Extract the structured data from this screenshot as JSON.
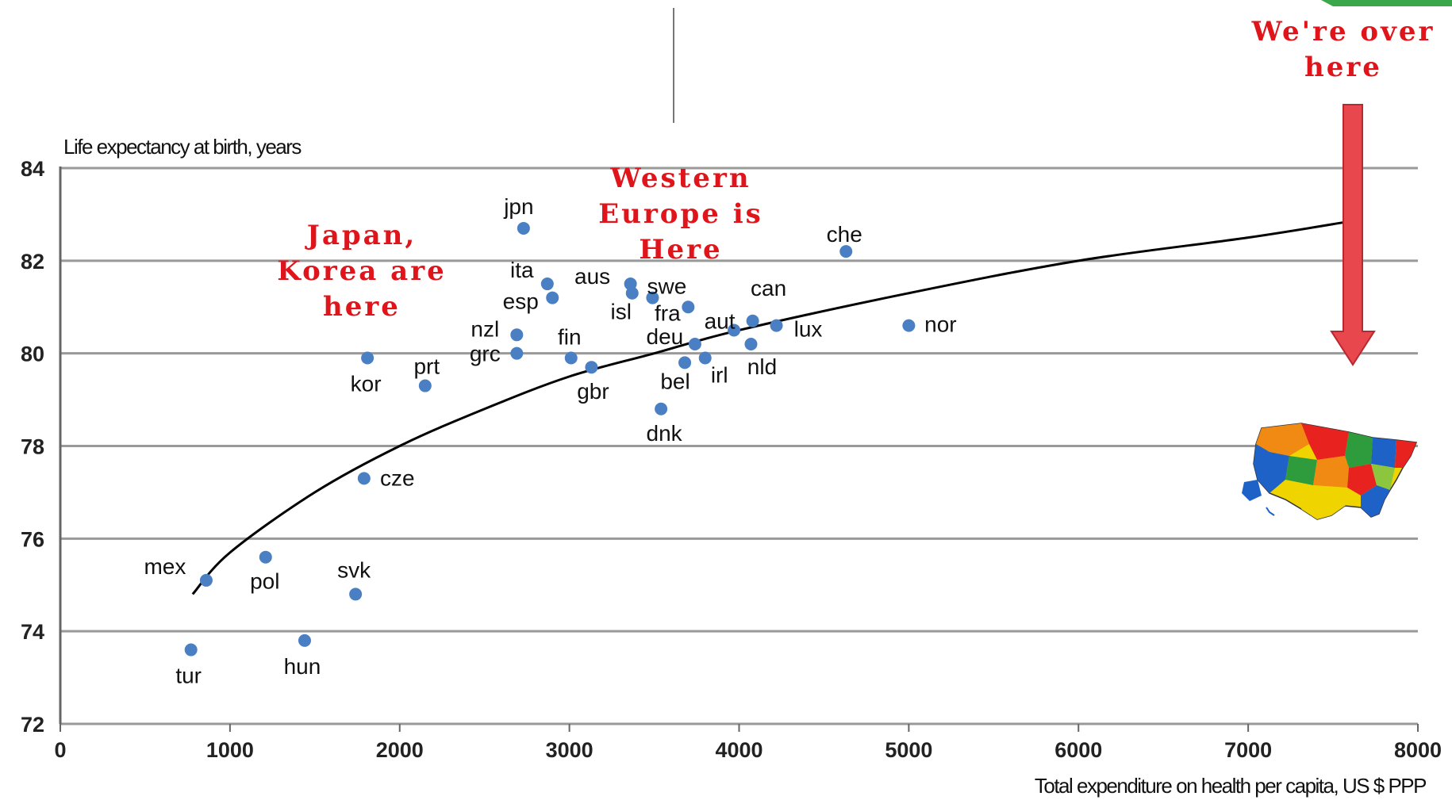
{
  "chart_data": {
    "type": "scatter",
    "ylabel": "Life expectancy at birth, years",
    "xlabel": "Total expenditure on health per capita, US $ PPP",
    "xlim": [
      0,
      8000
    ],
    "ylim": [
      72,
      84
    ],
    "x_ticks": [
      0,
      1000,
      2000,
      3000,
      4000,
      5000,
      6000,
      7000,
      8000
    ],
    "y_ticks": [
      72,
      74,
      76,
      78,
      80,
      82,
      84
    ],
    "grid": "horizontal",
    "point_color": "#4a7fc4",
    "points": [
      {
        "label": "jpn",
        "x": 2730,
        "y": 82.7
      },
      {
        "label": "ita",
        "x": 2870,
        "y": 81.5
      },
      {
        "label": "esp",
        "x": 2900,
        "y": 81.2
      },
      {
        "label": "aus",
        "x": 3360,
        "y": 81.5
      },
      {
        "label": "isl",
        "x": 3370,
        "y": 81.3
      },
      {
        "label": "swe",
        "x": 3490,
        "y": 81.2
      },
      {
        "label": "fra",
        "x": 3700,
        "y": 81.0
      },
      {
        "label": "deu",
        "x": 3740,
        "y": 80.2
      },
      {
        "label": "aut",
        "x": 3970,
        "y": 80.5
      },
      {
        "label": "can",
        "x": 4080,
        "y": 80.7
      },
      {
        "label": "lux",
        "x": 4220,
        "y": 80.6
      },
      {
        "label": "nld",
        "x": 4070,
        "y": 80.2
      },
      {
        "label": "irl",
        "x": 3800,
        "y": 79.9
      },
      {
        "label": "bel",
        "x": 3680,
        "y": 79.8
      },
      {
        "label": "dnk",
        "x": 3540,
        "y": 78.8
      },
      {
        "label": "gbr",
        "x": 3130,
        "y": 79.7
      },
      {
        "label": "fin",
        "x": 3010,
        "y": 79.9
      },
      {
        "label": "nzl",
        "x": 2690,
        "y": 80.4
      },
      {
        "label": "grc",
        "x": 2690,
        "y": 80.0
      },
      {
        "label": "che",
        "x": 4630,
        "y": 82.2
      },
      {
        "label": "nor",
        "x": 5000,
        "y": 80.6
      },
      {
        "label": "kor",
        "x": 1810,
        "y": 79.9
      },
      {
        "label": "prt",
        "x": 2150,
        "y": 79.3
      },
      {
        "label": "cze",
        "x": 1790,
        "y": 77.3
      },
      {
        "label": "mex",
        "x": 860,
        "y": 75.1
      },
      {
        "label": "pol",
        "x": 1210,
        "y": 75.6
      },
      {
        "label": "svk",
        "x": 1740,
        "y": 74.8
      },
      {
        "label": "tur",
        "x": 770,
        "y": 73.6
      },
      {
        "label": "hun",
        "x": 1440,
        "y": 73.8
      }
    ],
    "trend_line": {
      "type": "logarithmic",
      "x": [
        780,
        1000,
        1500,
        2000,
        2500,
        3000,
        3500,
        4000,
        5000,
        6000,
        7000,
        7600
      ],
      "y": [
        74.8,
        75.7,
        77.0,
        78.0,
        78.8,
        79.5,
        80.0,
        80.5,
        81.3,
        82.0,
        82.5,
        82.85
      ]
    }
  },
  "annotations": {
    "japan_korea": [
      "Japan,",
      "Korea are",
      "here"
    ],
    "western_europe": [
      "Western",
      "Europe is",
      "Here"
    ],
    "us": [
      "We're over",
      "here"
    ],
    "arrow_color": "#e8474d",
    "map_icon": "usa-map-icon"
  }
}
